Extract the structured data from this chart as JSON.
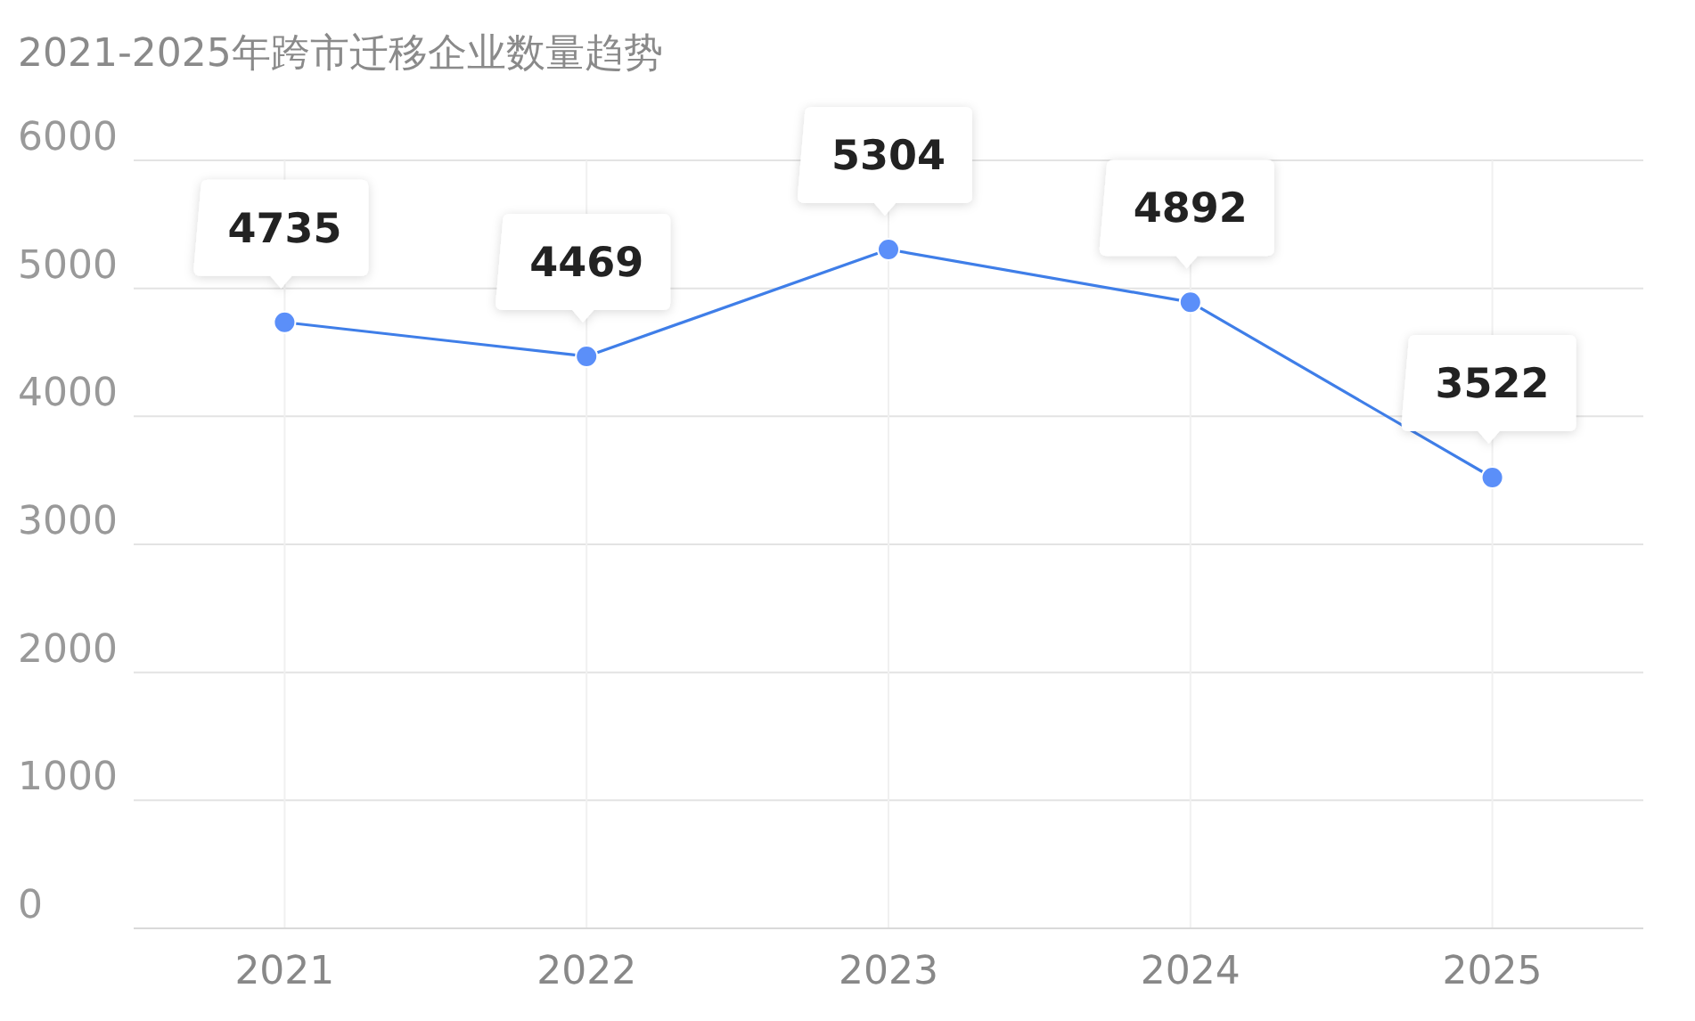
{
  "chart_data": {
    "type": "line",
    "title": "2021-2025年跨市迁移企业数量趋势",
    "categories": [
      "2021",
      "2022",
      "2023",
      "2024",
      "2025"
    ],
    "values": [
      4735,
      4469,
      5304,
      4892,
      3522
    ],
    "color": "#3f7ee8",
    "marker": "circle",
    "line_style": "solid",
    "grid": true,
    "data_labels": true,
    "ylim": [
      0,
      6000
    ],
    "yticks": [
      0,
      1000,
      2000,
      3000,
      4000,
      5000,
      6000
    ]
  }
}
